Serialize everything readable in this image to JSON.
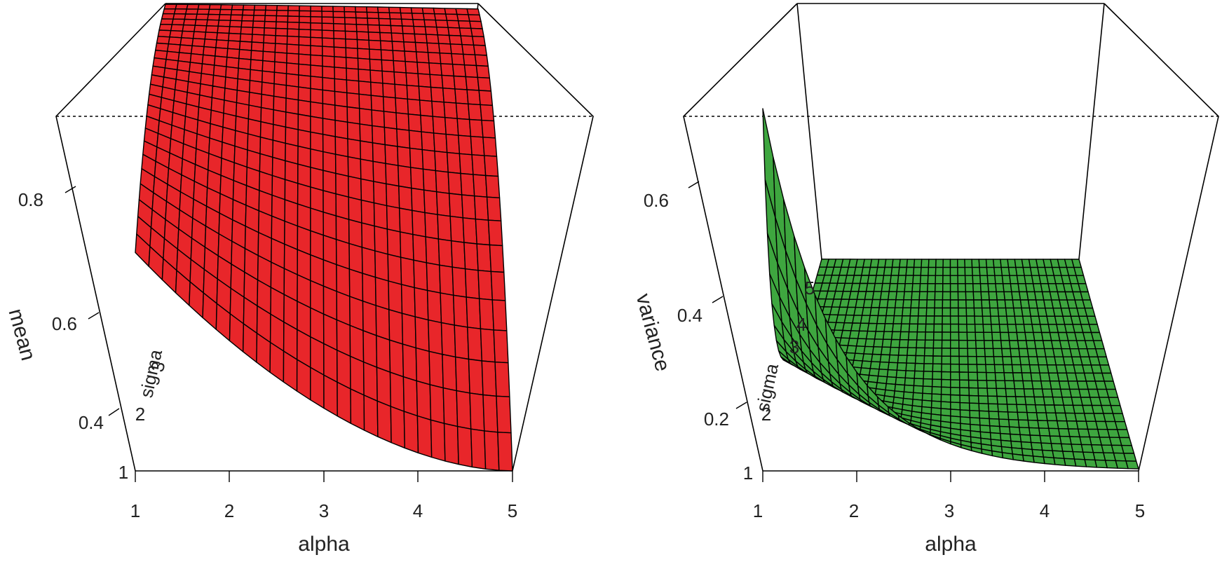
{
  "chart_data": [
    {
      "type": "surface3d",
      "zlabel": "mean",
      "xlabel": "alpha",
      "ylabel": "sigma",
      "x_ticks": [
        "1",
        "2",
        "3",
        "4",
        "5"
      ],
      "z_ticks": [
        "0.4",
        "0.6",
        "0.8"
      ],
      "y_ticks": [
        "1",
        "2",
        "3"
      ],
      "surface_color": "#e8262a",
      "x_range": [
        1,
        5
      ],
      "y_range": [
        1,
        5
      ],
      "z_range": [
        0.33,
        1.0
      ],
      "corner_values": {
        "alpha1_sigma1": 0.73,
        "alpha5_sigma1": 0.33,
        "alpha1_sigma5": 0.99,
        "alpha5_sigma5": 0.93
      }
    },
    {
      "type": "surface3d",
      "zlabel": "variance",
      "xlabel": "alpha",
      "ylabel": "sigma",
      "x_ticks": [
        "1",
        "2",
        "3",
        "4",
        "5"
      ],
      "z_ticks": [
        "0.2",
        "0.4",
        "0.6"
      ],
      "y_ticks": [
        "1",
        "2",
        "3",
        "4",
        "5"
      ],
      "surface_color": "#3ea63f",
      "x_range": [
        1,
        5
      ],
      "y_range": [
        1,
        5
      ],
      "z_range": [
        0.0,
        0.7
      ],
      "corner_values": {
        "alpha1_sigma1": 0.7,
        "alpha5_sigma1": 0.01,
        "alpha1_sigma5": 0.01,
        "alpha5_sigma5": 0.0
      }
    }
  ]
}
